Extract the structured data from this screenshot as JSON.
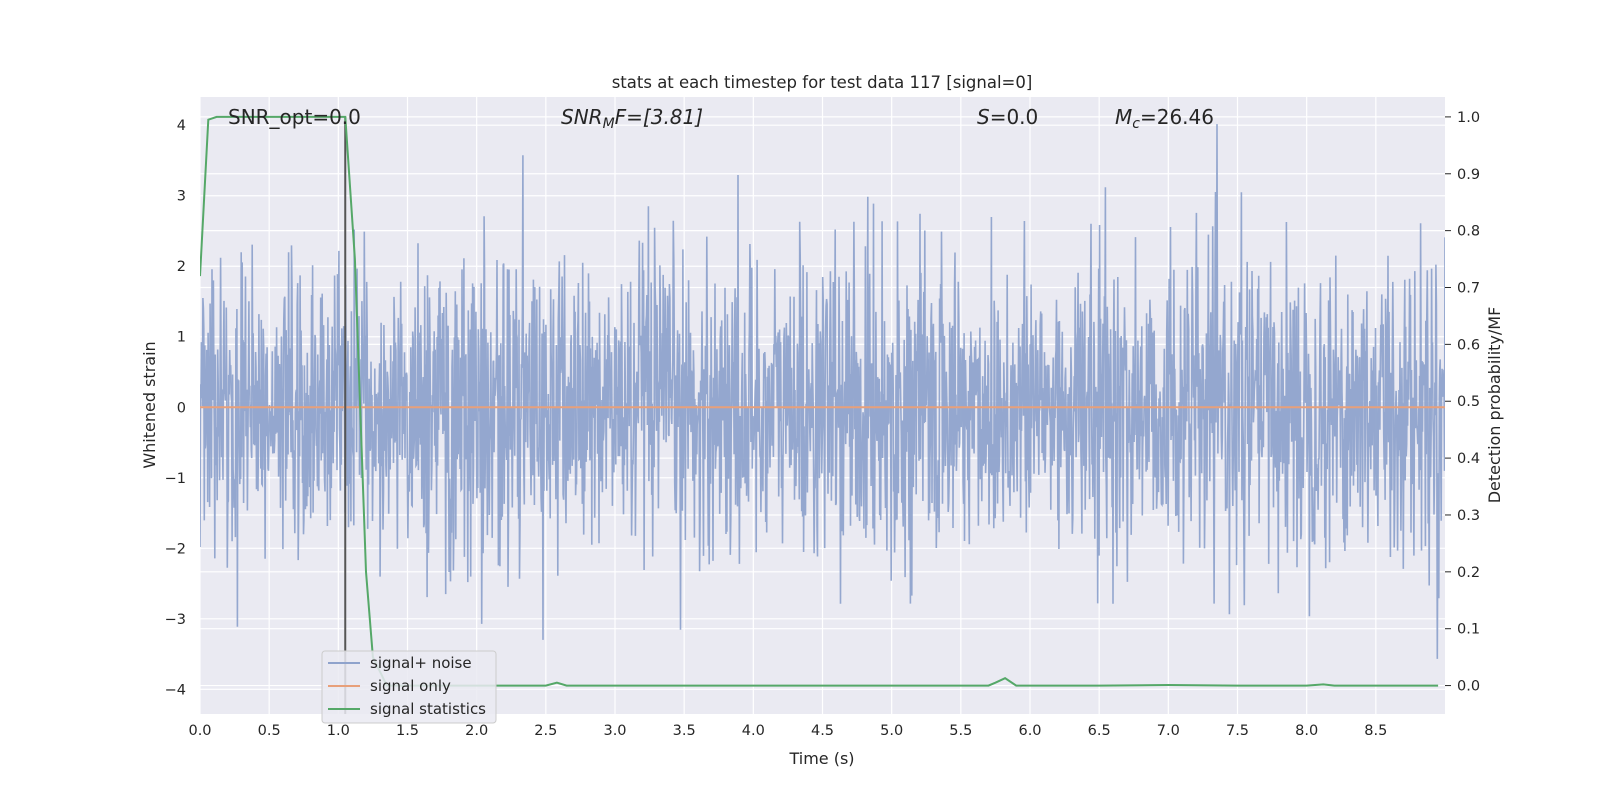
{
  "chart_data": {
    "type": "line",
    "title": "stats at each timestep for test data 117 [signal=0]",
    "xlabel": "Time (s)",
    "ylabel_left": "Whitened strain",
    "ylabel_right": "Detection probability/MF",
    "xlim": [
      0.0,
      9.0
    ],
    "ylim_left": [
      -4.35,
      4.4
    ],
    "ylim_right": [
      -0.05,
      1.035
    ],
    "x_ticks": [
      "0.0",
      "0.5",
      "1.0",
      "1.5",
      "2.0",
      "2.5",
      "3.0",
      "3.5",
      "4.0",
      "4.5",
      "5.0",
      "5.5",
      "6.0",
      "6.5",
      "7.0",
      "7.5",
      "8.0",
      "8.5"
    ],
    "y_left_ticks": [
      "4",
      "3",
      "2",
      "1",
      "0",
      "−1",
      "−2",
      "−3",
      "−4"
    ],
    "y_right_ticks": [
      "1.0",
      "0.9",
      "0.8",
      "0.7",
      "0.6",
      "0.5",
      "0.4",
      "0.3",
      "0.2",
      "0.1",
      "0.0"
    ],
    "grid": true,
    "annotations": {
      "snr_opt": "SNR_opt=0.0",
      "snr_mf_base": "SNR",
      "snr_mf_sub": "M",
      "snr_mf_rest": "F=[3.81]",
      "s_base": "S",
      "s_rest": "=0.0",
      "mc_base": "M",
      "mc_sub": "c",
      "mc_rest": "=26.46"
    },
    "marker_line_x": 1.05,
    "series": [
      {
        "name": "signal+ noise",
        "axis": "left",
        "color": "#8fa3cc",
        "description_level": "white noise, std ~1"
      },
      {
        "name": "signal only",
        "axis": "left",
        "color": "#e8a07a",
        "x": [
          0.0,
          9.0
        ],
        "y": [
          0.0,
          0.0
        ]
      },
      {
        "name": "signal statistics",
        "axis": "right",
        "color": "#55a868",
        "x": [
          0.0,
          0.06,
          0.12,
          0.3,
          0.6,
          0.9,
          1.05,
          1.12,
          1.2,
          1.25,
          1.35,
          1.5,
          2.0,
          2.5,
          2.58,
          2.65,
          3.0,
          4.0,
          5.0,
          5.7,
          5.75,
          5.82,
          5.9,
          6.5,
          7.0,
          7.5,
          8.0,
          8.12,
          8.2,
          8.95
        ],
        "y": [
          0.72,
          0.995,
          1.0,
          1.0,
          1.0,
          1.0,
          1.0,
          0.75,
          0.2,
          0.05,
          0.0,
          0.0,
          0.0,
          0.0,
          0.005,
          0.0,
          0.0,
          0.0,
          0.0,
          0.0,
          0.005,
          0.013,
          0.0,
          0.0,
          0.001,
          0.0,
          0.0,
          0.002,
          0.0,
          0.0
        ]
      }
    ],
    "legend": {
      "placement": "lower-left",
      "entries": [
        "signal+ noise",
        "signal only",
        "signal statistics"
      ]
    },
    "colors": {
      "plot_bg": "#eaeaf2",
      "grid": "#ffffff",
      "marker_line": "#555555"
    }
  }
}
